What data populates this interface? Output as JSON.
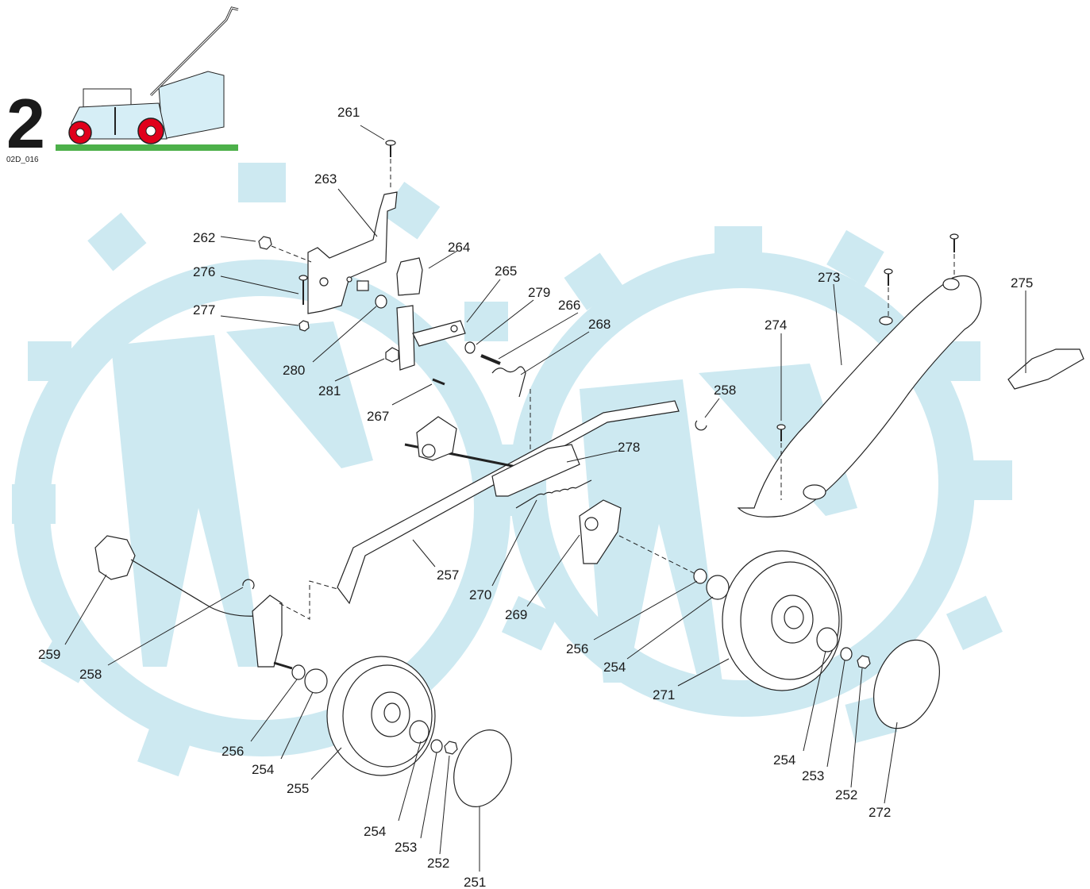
{
  "section_number": "2",
  "figure_code": "02D_016",
  "colors": {
    "watermark": "#cde9f1",
    "wheel_red": "#e0001b",
    "grass_green": "#4db04a",
    "mower_body": "#d6eef6"
  },
  "callouts": {
    "c261": "261",
    "c263": "263",
    "c262": "262",
    "c264": "264",
    "c276": "276",
    "c265": "265",
    "c279": "279",
    "c266": "266",
    "c277": "277",
    "c268": "268",
    "c280": "280",
    "c281": "281",
    "c267": "267",
    "c278": "278",
    "c258a": "258",
    "c257": "257",
    "c270": "270",
    "c269": "269",
    "c259": "259",
    "c258b": "258",
    "c256a": "256",
    "c254a": "254",
    "c255": "255",
    "c254b": "254",
    "c253a": "253",
    "c252a": "252",
    "c251": "251",
    "c273": "273",
    "c275": "275",
    "c274": "274",
    "c256b": "256",
    "c254c": "254",
    "c271": "271",
    "c254d": "254",
    "c253b": "253",
    "c252b": "252",
    "c272": "272"
  }
}
